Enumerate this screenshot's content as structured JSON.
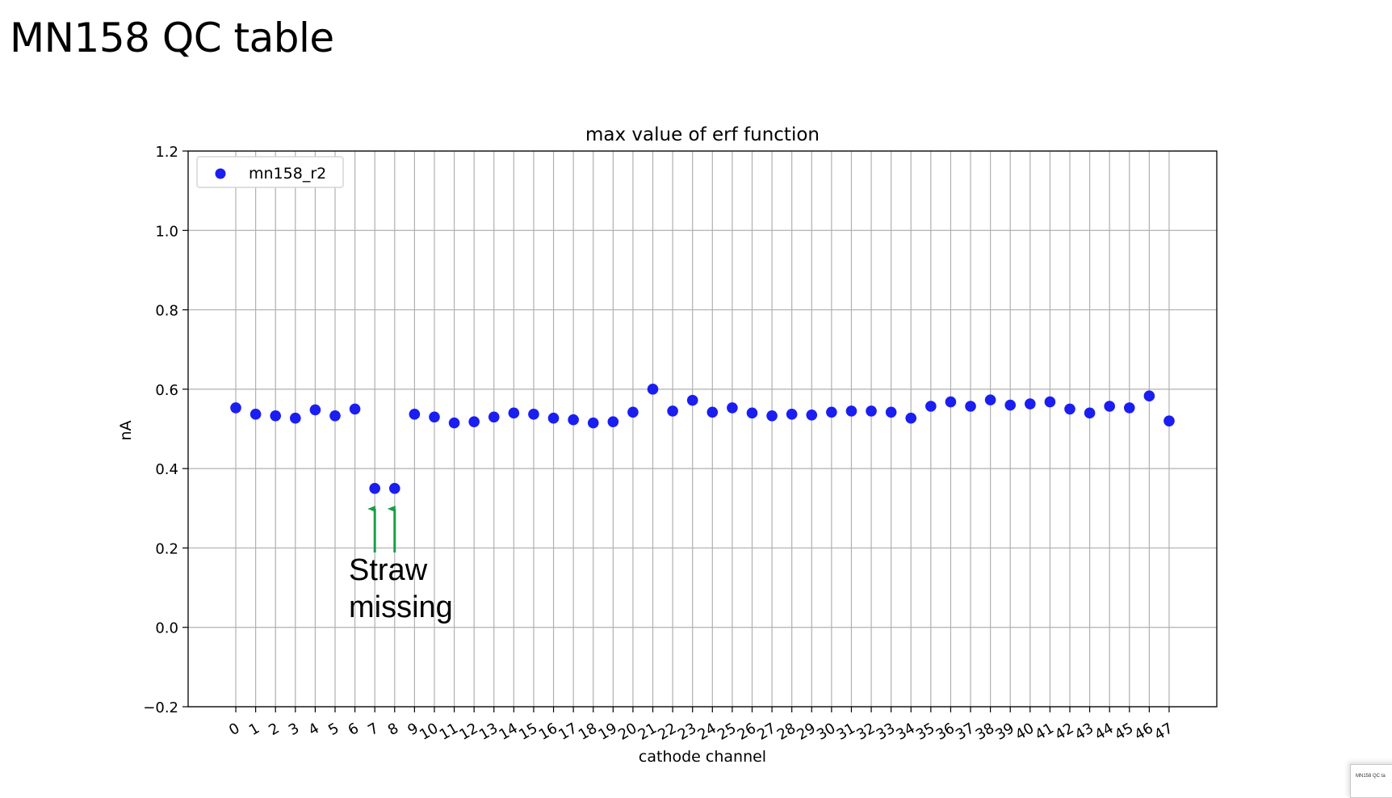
{
  "slide": {
    "title": "MN158 QC table",
    "thumbnail_label": "MN158 QC ta"
  },
  "annotation": {
    "text_line1": "Straw",
    "text_line2": "missing",
    "arrow_color": "#1a9e4a",
    "arrow_channels": [
      7,
      8
    ]
  },
  "chart_data": {
    "type": "scatter",
    "title": "max value of erf function",
    "xlabel": "cathode channel",
    "ylabel": "nA",
    "xlim": [
      -2.4,
      49.4
    ],
    "ylim": [
      -0.2,
      1.2
    ],
    "yticks": [
      -0.2,
      0.0,
      0.2,
      0.4,
      0.6,
      0.8,
      1.0,
      1.2
    ],
    "ytick_labels": [
      "−0.2",
      "0.0",
      "0.2",
      "0.4",
      "0.6",
      "0.8",
      "1.0",
      "1.2"
    ],
    "xticks": [
      0,
      1,
      2,
      3,
      4,
      5,
      6,
      7,
      8,
      9,
      10,
      11,
      12,
      13,
      14,
      15,
      16,
      17,
      18,
      19,
      20,
      21,
      22,
      23,
      24,
      25,
      26,
      27,
      28,
      29,
      30,
      31,
      32,
      33,
      34,
      35,
      36,
      37,
      38,
      39,
      40,
      41,
      42,
      43,
      44,
      45,
      46,
      47
    ],
    "grid": true,
    "legend_position": "upper-left",
    "series": [
      {
        "name": "mn158_r2",
        "color": "#1b1ef0",
        "x": [
          0,
          1,
          2,
          3,
          4,
          5,
          6,
          7,
          8,
          9,
          10,
          11,
          12,
          13,
          14,
          15,
          16,
          17,
          18,
          19,
          20,
          21,
          22,
          23,
          24,
          25,
          26,
          27,
          28,
          29,
          30,
          31,
          32,
          33,
          34,
          35,
          36,
          37,
          38,
          39,
          40,
          41,
          42,
          43,
          44,
          45,
          46,
          47
        ],
        "y": [
          0.553,
          0.537,
          0.533,
          0.527,
          0.548,
          0.533,
          0.55,
          0.35,
          0.35,
          0.537,
          0.53,
          0.515,
          0.518,
          0.53,
          0.54,
          0.537,
          0.527,
          0.523,
          0.515,
          0.518,
          0.542,
          0.6,
          0.545,
          0.572,
          0.542,
          0.553,
          0.54,
          0.533,
          0.537,
          0.535,
          0.542,
          0.545,
          0.545,
          0.542,
          0.527,
          0.557,
          0.568,
          0.557,
          0.573,
          0.56,
          0.563,
          0.568,
          0.55,
          0.54,
          0.557,
          0.553,
          0.583,
          0.52
        ]
      }
    ]
  }
}
